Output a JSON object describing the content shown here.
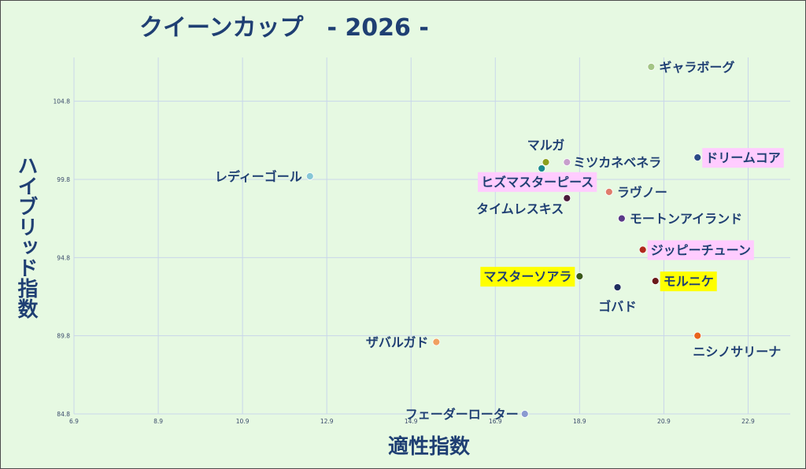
{
  "chart_data": {
    "type": "scatter",
    "title": "クイーンカップ　- 2026 -",
    "xlabel": "適性指数",
    "ylabel": "ハイブリッド指数",
    "xlim": [
      6.9,
      23.9
    ],
    "ylim": [
      84.8,
      107.6
    ],
    "x_ticks": [
      6.9,
      8.9,
      10.9,
      12.9,
      14.9,
      16.9,
      18.9,
      20.9,
      22.9
    ],
    "y_ticks": [
      84.8,
      89.8,
      94.8,
      99.8,
      104.8
    ],
    "x_tick_labels": [
      "6.9",
      "8.9",
      "10.9",
      "12.9",
      "14.9",
      "16.9",
      "18.9",
      "20.9",
      "22.9"
    ],
    "y_tick_labels": [
      "84.8",
      "89.8",
      "94.8",
      "99.8",
      "104.8"
    ],
    "grid": true,
    "legend": "none",
    "points": [
      {
        "name": "ギャラボーグ",
        "x": 20.6,
        "y": 107.0,
        "color": "#a3c585"
      },
      {
        "name": "ドリームコア",
        "x": 21.7,
        "y": 101.2,
        "color": "#2a4a86",
        "highlight": "#ffccff"
      },
      {
        "name": "マルガ",
        "x": 18.1,
        "y": 100.9,
        "color": "#8ca01e"
      },
      {
        "name": "ミツカネベネラ",
        "x": 18.6,
        "y": 100.9,
        "color": "#c79fcc"
      },
      {
        "name": "",
        "x": 18.0,
        "y": 100.5,
        "color": "#1a8a90"
      },
      {
        "name": "レディーゴール",
        "x": 12.5,
        "y": 100.0,
        "color": "#86c7d6"
      },
      {
        "name": "ヒズマスターピース",
        "x": 18.6,
        "y": 98.6,
        "color": "#4a1a3a",
        "highlight": "#ffccff"
      },
      {
        "name": "タイムレスキス",
        "x": 18.6,
        "y": 98.6,
        "color": "#4a1a3a"
      },
      {
        "name": "ラヴノー",
        "x": 19.6,
        "y": 99.0,
        "color": "#e07c6c"
      },
      {
        "name": "モートンアイランド",
        "x": 19.9,
        "y": 97.3,
        "color": "#5a3a88"
      },
      {
        "name": "ジッピーチューン",
        "x": 20.4,
        "y": 95.3,
        "color": "#b02a1c",
        "highlight": "#ffccff"
      },
      {
        "name": "マスターソアラ",
        "x": 18.9,
        "y": 93.6,
        "color": "#3a5a1a",
        "highlight": "#ffff00"
      },
      {
        "name": "モルニケ",
        "x": 20.7,
        "y": 93.3,
        "color": "#6a1a1a",
        "highlight": "#ffff00"
      },
      {
        "name": "ゴバド",
        "x": 19.8,
        "y": 92.9,
        "color": "#1e2e5e"
      },
      {
        "name": "ニシノサリーナ",
        "x": 21.7,
        "y": 89.8,
        "color": "#e8641c"
      },
      {
        "name": "ザバルガド",
        "x": 15.5,
        "y": 89.4,
        "color": "#f0a060"
      },
      {
        "name": "フェーダーローター",
        "x": 17.6,
        "y": 84.8,
        "color": "#8a9ad0"
      }
    ]
  }
}
